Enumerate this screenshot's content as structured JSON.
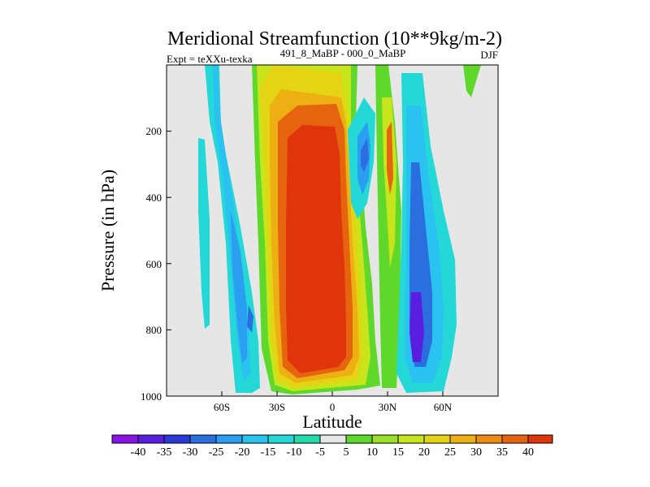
{
  "chart_data": {
    "type": "heatmap",
    "title": "Meridional Streamfunction (10**9kg/m-2)",
    "experiment_label": "Expt = teXXu-texka",
    "subtitle": "491_8_MaBP - 000_0_MaBP",
    "season": "DJF",
    "xlabel": "Latitude",
    "ylabel": "Pressure (in hPa)",
    "xlim": [
      -90,
      90
    ],
    "ylim": [
      1000,
      0
    ],
    "x_ticks": [
      {
        "value": -60,
        "label": "60S"
      },
      {
        "value": -30,
        "label": "30S"
      },
      {
        "value": 0,
        "label": "0"
      },
      {
        "value": 30,
        "label": "30N"
      },
      {
        "value": 60,
        "label": "60N"
      }
    ],
    "y_ticks": [
      {
        "value": 200,
        "label": "200"
      },
      {
        "value": 400,
        "label": "400"
      },
      {
        "value": 600,
        "label": "600"
      },
      {
        "value": 800,
        "label": "800"
      },
      {
        "value": 1000,
        "label": "1000"
      }
    ],
    "colorbar": {
      "colors": [
        "#8a12e6",
        "#5a1ee0",
        "#2a3ad6",
        "#2a6ee0",
        "#2a9ef0",
        "#2ac2f0",
        "#24d8d8",
        "#22dcaa",
        "#e6e6e6",
        "#5ed82a",
        "#9ae024",
        "#c8e41a",
        "#e4d414",
        "#ecb012",
        "#ec8a12",
        "#e6640e",
        "#e0340a"
      ],
      "labels": [
        "-40",
        "-35",
        "-30",
        "-25",
        "-20",
        "-15",
        "-10",
        "-5",
        "5",
        "10",
        "15",
        "20",
        "25",
        "30",
        "35",
        "40"
      ]
    }
  }
}
